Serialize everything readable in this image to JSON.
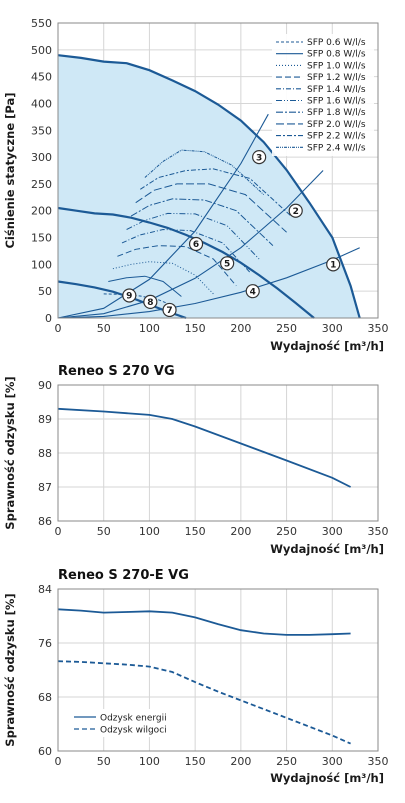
{
  "colors": {
    "curve": "#1c5a96",
    "fill": "#cfe8f6",
    "grid": "#d6d6d6",
    "frame": "#8a8a8a"
  },
  "chart_data": [
    {
      "type": "line",
      "title": "",
      "xlabel": "Wydajność [m³/h]",
      "ylabel": "Ciśnienie statyczne [Pa]",
      "xlim": [
        0,
        350
      ],
      "ylim": [
        0,
        550
      ],
      "xticks": [
        0,
        50,
        100,
        150,
        200,
        250,
        300,
        350
      ],
      "yticks": [
        0,
        50,
        100,
        150,
        200,
        250,
        300,
        350,
        400,
        450,
        500,
        550
      ],
      "grid": true,
      "legend_position": "top-right",
      "fan_curves": [
        {
          "x": [
            0,
            25,
            50,
            75,
            100,
            125,
            150,
            175,
            200,
            225,
            250,
            275,
            300,
            320,
            330
          ],
          "y": [
            490,
            485,
            478,
            475,
            462,
            443,
            423,
            398,
            368,
            328,
            276,
            215,
            150,
            60,
            0
          ]
        },
        {
          "x": [
            0,
            20,
            40,
            60,
            80,
            100,
            120,
            140,
            160,
            180,
            200,
            220,
            240,
            260,
            280
          ],
          "y": [
            205,
            200,
            195,
            193,
            187,
            178,
            168,
            155,
            140,
            123,
            103,
            80,
            55,
            28,
            0
          ]
        },
        {
          "x": [
            0,
            20,
            40,
            60,
            80,
            100,
            120,
            140
          ],
          "y": [
            68,
            63,
            57,
            49,
            38,
            25,
            12,
            0
          ]
        }
      ],
      "system_curves": [
        {
          "x": [
            0,
            50,
            100,
            150,
            200,
            250,
            300,
            330
          ],
          "y": [
            0,
            3,
            12,
            27,
            48,
            75,
            108,
            131
          ]
        },
        {
          "x": [
            0,
            50,
            100,
            150,
            200,
            250,
            290
          ],
          "y": [
            0,
            8,
            33,
            74,
            131,
            205,
            275
          ]
        },
        {
          "x": [
            0,
            50,
            100,
            150,
            200,
            230
          ],
          "y": [
            0,
            18,
            72,
            162,
            288,
            380
          ]
        }
      ],
      "sfp_series": [
        {
          "name": "SFP 0.6 W/l/s",
          "x": [
            50,
            70,
            90,
            110,
            130
          ],
          "y": [
            45,
            44,
            41,
            34,
            20
          ]
        },
        {
          "name": "SFP 0.8 W/l/s",
          "x": [
            55,
            75,
            95,
            115,
            135
          ],
          "y": [
            68,
            75,
            78,
            68,
            40
          ]
        },
        {
          "name": "SFP 1.0 W/l/s",
          "x": [
            60,
            80,
            100,
            125,
            150,
            170
          ],
          "y": [
            92,
            100,
            105,
            102,
            80,
            45
          ]
        },
        {
          "name": "SFP 1.2 W/l/s",
          "x": [
            65,
            85,
            110,
            140,
            170,
            195
          ],
          "y": [
            115,
            128,
            135,
            133,
            110,
            60
          ]
        },
        {
          "name": "SFP 1.4 W/l/s",
          "x": [
            70,
            90,
            115,
            145,
            180,
            210
          ],
          "y": [
            140,
            155,
            165,
            163,
            140,
            85
          ]
        },
        {
          "name": "SFP 1.6 W/l/s",
          "x": [
            75,
            95,
            120,
            150,
            185,
            220
          ],
          "y": [
            165,
            182,
            195,
            194,
            172,
            110
          ]
        },
        {
          "name": "SFP 1.8 W/l/s",
          "x": [
            80,
            100,
            125,
            160,
            195,
            235
          ],
          "y": [
            190,
            210,
            222,
            220,
            200,
            135
          ]
        },
        {
          "name": "SFP 2.0 W/l/s",
          "x": [
            85,
            105,
            130,
            165,
            205,
            250
          ],
          "y": [
            215,
            238,
            250,
            250,
            230,
            160
          ]
        },
        {
          "name": "SFP 2.2 W/l/s",
          "x": [
            90,
            110,
            140,
            170,
            210,
            255
          ],
          "y": [
            240,
            262,
            275,
            278,
            260,
            190
          ]
        },
        {
          "name": "SFP 2.4 W/l/s",
          "x": [
            95,
            115,
            135,
            160,
            190,
            225
          ],
          "y": [
            262,
            292,
            313,
            310,
            285,
            230
          ]
        }
      ],
      "markers": [
        {
          "label": "1",
          "x": 301,
          "y": 100
        },
        {
          "label": "2",
          "x": 260,
          "y": 200
        },
        {
          "label": "3",
          "x": 220,
          "y": 300
        },
        {
          "label": "4",
          "x": 213,
          "y": 50
        },
        {
          "label": "5",
          "x": 185,
          "y": 102
        },
        {
          "label": "6",
          "x": 151,
          "y": 138
        },
        {
          "label": "7",
          "x": 122,
          "y": 15
        },
        {
          "label": "8",
          "x": 101,
          "y": 30
        },
        {
          "label": "9",
          "x": 78,
          "y": 42
        }
      ]
    },
    {
      "type": "line",
      "title": "Reneo S 270 VG",
      "xlabel": "Wydajność [m³/h]",
      "ylabel": "Sprawność odzysku [%]",
      "xlim": [
        0,
        350
      ],
      "ylim": [
        86,
        90
      ],
      "xticks": [
        0,
        50,
        100,
        150,
        200,
        250,
        300,
        350
      ],
      "yticks": [
        86,
        87,
        88,
        89,
        90
      ],
      "grid": true,
      "series": [
        {
          "x": [
            0,
            50,
            100,
            125,
            150,
            200,
            250,
            300,
            320
          ],
          "y": [
            89.3,
            89.22,
            89.12,
            89.0,
            88.78,
            88.28,
            87.78,
            87.27,
            87.0
          ]
        }
      ]
    },
    {
      "type": "line",
      "title": "Reneo S 270-E VG",
      "xlabel": "Wydajność [m³/h]",
      "ylabel": "Sprawność odzysku [%]",
      "xlim": [
        0,
        350
      ],
      "ylim": [
        60,
        84
      ],
      "xticks": [
        0,
        50,
        100,
        150,
        200,
        250,
        300,
        350
      ],
      "yticks": [
        60,
        68,
        76,
        84
      ],
      "grid": true,
      "legend_position": "bottom-left",
      "series": [
        {
          "name": "Odzysk energii",
          "x": [
            0,
            25,
            50,
            75,
            100,
            125,
            150,
            175,
            200,
            225,
            250,
            275,
            300,
            320
          ],
          "y": [
            81.0,
            80.8,
            80.5,
            80.6,
            80.7,
            80.5,
            79.8,
            78.8,
            77.9,
            77.4,
            77.2,
            77.2,
            77.3,
            77.4
          ]
        },
        {
          "name": "Odzysk wilgoci",
          "x": [
            0,
            25,
            50,
            75,
            100,
            125,
            150,
            175,
            200,
            225,
            250,
            275,
            300,
            320
          ],
          "y": [
            73.3,
            73.2,
            73.0,
            72.8,
            72.5,
            71.7,
            70.2,
            68.8,
            67.5,
            66.2,
            64.9,
            63.6,
            62.3,
            61.1
          ]
        }
      ]
    }
  ]
}
